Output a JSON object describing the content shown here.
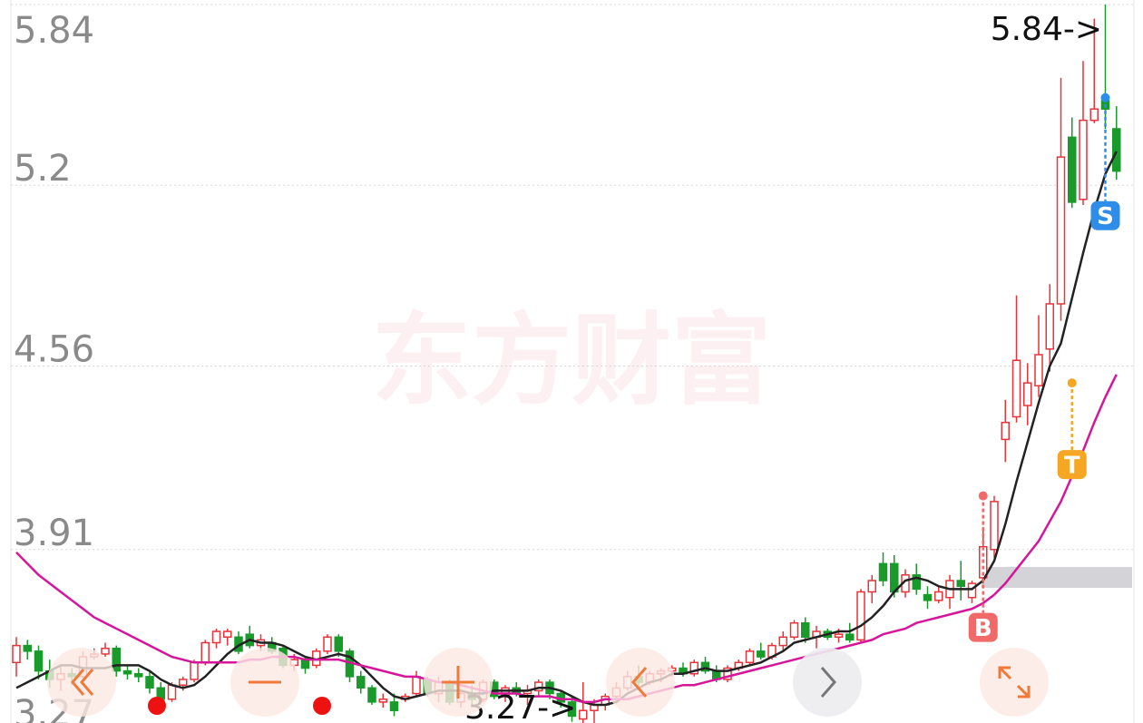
{
  "chart_data": {
    "type": "candlestick",
    "watermark": "东方财富",
    "high_label": "5.84->",
    "low_label": "3.27->",
    "ylim": [
      3.27,
      5.84
    ],
    "yticks": [
      3.27,
      3.91,
      4.56,
      5.2,
      5.84
    ],
    "grid": true,
    "up_color": "#e8333a",
    "down_color": "#1a9a2a",
    "open": [
      3.51,
      3.57,
      3.55,
      3.48,
      3.45,
      3.47,
      3.46,
      3.53,
      3.54,
      3.56,
      3.48,
      3.47,
      3.46,
      3.42,
      3.38,
      3.43,
      3.45,
      3.51,
      3.58,
      3.6,
      3.6,
      3.61,
      3.57,
      3.58,
      3.56,
      3.5,
      3.52,
      3.5,
      3.55,
      3.6,
      3.55,
      3.46,
      3.42,
      3.37,
      3.37,
      3.38,
      3.4,
      3.45,
      3.4,
      3.44,
      3.37,
      3.4,
      3.38,
      3.44,
      3.39,
      3.42,
      3.4,
      3.41,
      3.44,
      3.4,
      3.37,
      3.31,
      3.34,
      3.36,
      3.39,
      3.42,
      3.46,
      3.44,
      3.47,
      3.48,
      3.49,
      3.47,
      3.51,
      3.48,
      3.45,
      3.49,
      3.51,
      3.55,
      3.53,
      3.57,
      3.6,
      3.65,
      3.6,
      3.62,
      3.6,
      3.61,
      3.59,
      3.76,
      3.86,
      3.86,
      3.76,
      3.82,
      3.75,
      3.73,
      3.74,
      3.8,
      3.74,
      3.81,
      3.91,
      4.3,
      4.38,
      4.42,
      4.49,
      4.62,
      4.78,
      5.37,
      5.15,
      5.43,
      5.5,
      5.4
    ],
    "high": [
      3.6,
      3.59,
      3.57,
      3.52,
      3.5,
      3.49,
      3.55,
      3.56,
      3.58,
      3.57,
      3.5,
      3.49,
      3.48,
      3.44,
      3.44,
      3.46,
      3.52,
      3.59,
      3.63,
      3.63,
      3.62,
      3.64,
      3.61,
      3.6,
      3.57,
      3.54,
      3.53,
      3.56,
      3.61,
      3.61,
      3.56,
      3.48,
      3.43,
      3.4,
      3.4,
      3.4,
      3.48,
      3.46,
      3.46,
      3.45,
      3.41,
      3.43,
      3.45,
      3.45,
      3.43,
      3.44,
      3.43,
      3.45,
      3.45,
      3.41,
      3.39,
      3.44,
      3.38,
      3.4,
      3.44,
      3.48,
      3.5,
      3.48,
      3.49,
      3.5,
      3.51,
      3.52,
      3.53,
      3.5,
      3.5,
      3.52,
      3.56,
      3.58,
      3.58,
      3.62,
      3.66,
      3.67,
      3.64,
      3.63,
      3.63,
      3.65,
      3.77,
      3.82,
      3.9,
      3.89,
      3.84,
      3.86,
      3.78,
      3.78,
      3.82,
      3.87,
      3.8,
      3.99,
      4.1,
      4.44,
      4.81,
      4.57,
      4.74,
      4.85,
      5.58,
      5.44,
      5.64,
      5.79,
      5.84,
      5.48
    ],
    "low": [
      3.46,
      3.52,
      3.45,
      3.42,
      3.41,
      3.43,
      3.44,
      3.52,
      3.53,
      3.46,
      3.45,
      3.44,
      3.4,
      3.36,
      3.37,
      3.41,
      3.44,
      3.5,
      3.56,
      3.57,
      3.54,
      3.56,
      3.55,
      3.54,
      3.49,
      3.48,
      3.47,
      3.49,
      3.54,
      3.53,
      3.44,
      3.4,
      3.36,
      3.35,
      3.32,
      3.37,
      3.39,
      3.39,
      3.37,
      3.36,
      3.35,
      3.36,
      3.37,
      3.38,
      3.37,
      3.39,
      3.36,
      3.39,
      3.38,
      3.35,
      3.3,
      3.27,
      3.29,
      3.34,
      3.37,
      3.41,
      3.42,
      3.43,
      3.44,
      3.46,
      3.46,
      3.46,
      3.47,
      3.44,
      3.44,
      3.48,
      3.5,
      3.52,
      3.52,
      3.55,
      3.59,
      3.58,
      3.56,
      3.59,
      3.58,
      3.58,
      3.58,
      3.72,
      3.78,
      3.74,
      3.74,
      3.75,
      3.7,
      3.72,
      3.7,
      3.73,
      3.72,
      3.79,
      3.88,
      4.22,
      4.36,
      4.35,
      4.45,
      4.54,
      4.72,
      5.12,
      5.13,
      5.42,
      5.4,
      5.22
    ],
    "close": [
      3.57,
      3.55,
      3.48,
      3.45,
      3.47,
      3.46,
      3.53,
      3.54,
      3.56,
      3.48,
      3.47,
      3.46,
      3.42,
      3.38,
      3.43,
      3.45,
      3.51,
      3.58,
      3.62,
      3.62,
      3.55,
      3.57,
      3.59,
      3.55,
      3.5,
      3.52,
      3.49,
      3.55,
      3.6,
      3.55,
      3.46,
      3.42,
      3.37,
      3.38,
      3.34,
      3.39,
      3.46,
      3.4,
      3.44,
      3.37,
      3.4,
      3.38,
      3.44,
      3.39,
      3.42,
      3.4,
      3.41,
      3.44,
      3.4,
      3.37,
      3.32,
      3.34,
      3.36,
      3.39,
      3.42,
      3.46,
      3.44,
      3.47,
      3.48,
      3.49,
      3.47,
      3.51,
      3.48,
      3.45,
      3.49,
      3.51,
      3.55,
      3.53,
      3.57,
      3.6,
      3.65,
      3.6,
      3.62,
      3.6,
      3.61,
      3.59,
      3.76,
      3.8,
      3.8,
      3.76,
      3.82,
      3.77,
      3.73,
      3.76,
      3.8,
      3.78,
      3.79,
      3.92,
      4.08,
      4.36,
      4.58,
      4.5,
      4.6,
      4.78,
      5.3,
      5.14,
      5.43,
      5.47,
      5.47,
      5.25
    ],
    "series": [
      {
        "color": "#222222",
        "values": [
          3.42,
          3.44,
          3.46,
          3.48,
          3.5,
          3.5,
          3.49,
          3.49,
          3.49,
          3.5,
          3.5,
          3.5,
          3.48,
          3.45,
          3.43,
          3.42,
          3.43,
          3.46,
          3.5,
          3.54,
          3.57,
          3.59,
          3.58,
          3.58,
          3.57,
          3.55,
          3.53,
          3.52,
          3.53,
          3.54,
          3.53,
          3.5,
          3.46,
          3.42,
          3.39,
          3.38,
          3.39,
          3.4,
          3.41,
          3.41,
          3.41,
          3.4,
          3.4,
          3.41,
          3.41,
          3.41,
          3.41,
          3.42,
          3.42,
          3.41,
          3.39,
          3.37,
          3.36,
          3.36,
          3.37,
          3.4,
          3.42,
          3.44,
          3.45,
          3.47,
          3.47,
          3.48,
          3.49,
          3.48,
          3.48,
          3.49,
          3.5,
          3.51,
          3.53,
          3.55,
          3.58,
          3.59,
          3.6,
          3.61,
          3.62,
          3.62,
          3.64,
          3.67,
          3.71,
          3.76,
          3.8,
          3.81,
          3.8,
          3.78,
          3.77,
          3.77,
          3.77,
          3.8,
          3.87,
          4.0,
          4.15,
          4.29,
          4.43,
          4.56,
          4.64,
          4.8,
          4.96,
          5.11,
          5.24,
          5.32
        ]
      },
      {
        "color": "#d6169a",
        "values": [
          3.9,
          3.86,
          3.82,
          3.79,
          3.76,
          3.73,
          3.7,
          3.67,
          3.65,
          3.63,
          3.61,
          3.59,
          3.57,
          3.55,
          3.53,
          3.52,
          3.51,
          3.51,
          3.51,
          3.51,
          3.51,
          3.52,
          3.52,
          3.53,
          3.53,
          3.53,
          3.52,
          3.52,
          3.52,
          3.52,
          3.51,
          3.5,
          3.49,
          3.48,
          3.47,
          3.46,
          3.46,
          3.45,
          3.44,
          3.44,
          3.43,
          3.42,
          3.41,
          3.4,
          3.4,
          3.4,
          3.39,
          3.39,
          3.39,
          3.38,
          3.38,
          3.37,
          3.37,
          3.38,
          3.38,
          3.38,
          3.39,
          3.4,
          3.41,
          3.42,
          3.43,
          3.43,
          3.44,
          3.45,
          3.46,
          3.47,
          3.48,
          3.49,
          3.5,
          3.51,
          3.52,
          3.53,
          3.54,
          3.55,
          3.56,
          3.57,
          3.58,
          3.59,
          3.61,
          3.62,
          3.63,
          3.65,
          3.66,
          3.67,
          3.68,
          3.69,
          3.7,
          3.72,
          3.75,
          3.79,
          3.84,
          3.89,
          3.94,
          4.01,
          4.08,
          4.17,
          4.26,
          4.36,
          4.45,
          4.53
        ]
      }
    ],
    "signals": [
      {
        "label": "B",
        "at": 87,
        "price": 4.1,
        "color": "#f06a6a"
      },
      {
        "label": "T",
        "at": 95,
        "price": 4.5,
        "color": "#f5a623"
      },
      {
        "label": "S",
        "at": 98,
        "price": 5.51,
        "color": "#2d8de8"
      }
    ]
  }
}
